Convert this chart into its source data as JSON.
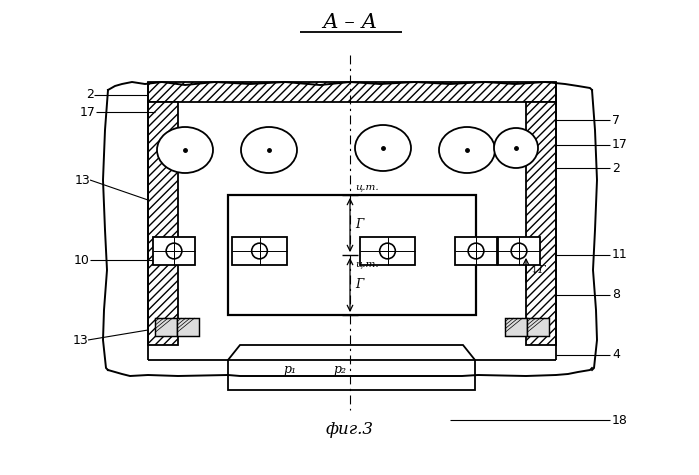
{
  "fig_width": 6.99,
  "fig_height": 4.75,
  "dpi": 100,
  "bg": "#ffffff",
  "lc": "#000000",
  "title": "А – А",
  "subtitle": "фиг.3",
  "label_left": [
    "2",
    "17",
    "13",
    "10",
    "13"
  ],
  "label_right": [
    "7",
    "17",
    "2",
    "11",
    "8",
    "4",
    "18"
  ],
  "ct": "ц.т.",
  "gamma": "Г",
  "p1": "р₁",
  "p2": "р₂"
}
